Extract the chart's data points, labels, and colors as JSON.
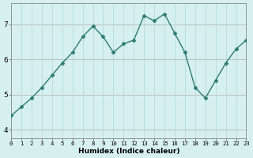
{
  "x": [
    0,
    1,
    2,
    3,
    4,
    5,
    6,
    7,
    8,
    9,
    10,
    11,
    12,
    13,
    14,
    15,
    16,
    17,
    18,
    19,
    20,
    21,
    22,
    23
  ],
  "y": [
    4.4,
    4.65,
    4.9,
    5.2,
    5.55,
    5.9,
    6.2,
    6.65,
    6.95,
    6.65,
    6.2,
    6.45,
    6.55,
    7.25,
    7.1,
    7.3,
    6.75,
    6.2,
    5.2,
    4.9,
    5.4,
    5.9,
    6.3,
    6.55
  ],
  "line_color": "#2e7d6e",
  "marker": "D",
  "marker_size": 2.5,
  "bg_color": "#d6f0f0",
  "grid_color": "#b8dada",
  "red_line_color": "#cc3333",
  "yticks": [
    4,
    5,
    6,
    7
  ],
  "xlabel": "Humidex (Indice chaleur)",
  "xlim": [
    0,
    23
  ],
  "ylim": [
    3.75,
    7.6
  ],
  "xlabel_fontsize": 6.5,
  "ytick_fontsize": 6.5,
  "xtick_fontsize": 5.2
}
